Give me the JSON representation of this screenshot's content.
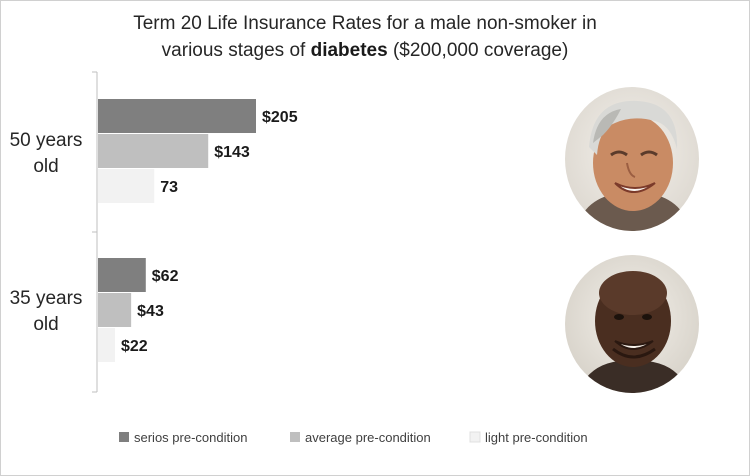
{
  "chart_data": {
    "type": "bar",
    "orientation": "horizontal",
    "title": {
      "line1": "Term 20 Life Insurance Rates for a male non-smoker in",
      "line2_pre": "various stages of ",
      "line2_bold": "diabetes",
      "line2_post": " ($200,000 coverage)"
    },
    "categories": [
      "50 years old",
      "35 years old"
    ],
    "series": [
      {
        "name": "serios pre-condition",
        "values": [
          205,
          62
        ],
        "labels": [
          "$205",
          "$62"
        ],
        "color": "#7f7f7f"
      },
      {
        "name": "average pre-condition",
        "values": [
          143,
          43
        ],
        "labels": [
          "$143",
          "$43"
        ],
        "color": "#bfbfbf"
      },
      {
        "name": "light pre-condition",
        "values": [
          73,
          22
        ],
        "labels": [
          "73",
          "$22"
        ],
        "color": "#f2f2f2"
      }
    ],
    "xlim": [
      0,
      220
    ],
    "grid": false,
    "legend_position": "bottom"
  },
  "photos": [
    {
      "name": "older-man-photo",
      "description_icon": "portrait-gray-haired-man"
    },
    {
      "name": "younger-man-photo",
      "description_icon": "portrait-bald-man"
    }
  ]
}
